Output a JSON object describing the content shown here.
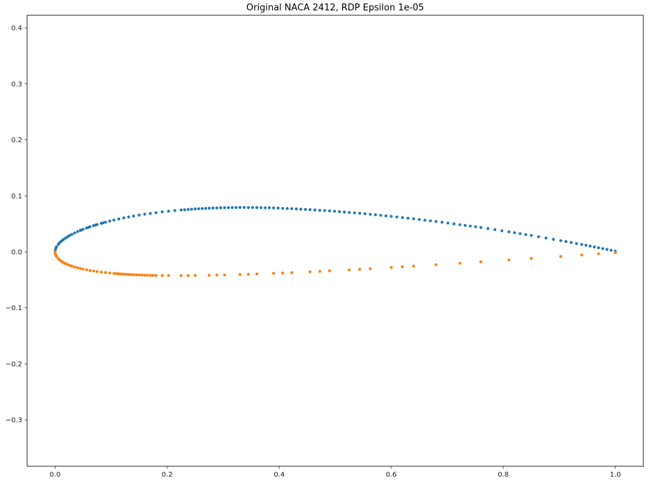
{
  "chart_data": {
    "type": "scatter",
    "title": "Original NACA 2412, RDP Epsilon 1e-05",
    "xlabel": "",
    "ylabel": "",
    "grid": false,
    "legend": "none",
    "aspect": "equal",
    "xlim": [
      -0.05,
      1.05
    ],
    "ylim": [
      -0.3828,
      0.4224
    ],
    "x_ticks": [
      0.0,
      0.2,
      0.4,
      0.6,
      0.8,
      1.0
    ],
    "x_tick_labels": [
      "0.0",
      "0.2",
      "0.4",
      "0.6",
      "0.8",
      "1.0"
    ],
    "y_ticks": [
      -0.3,
      -0.2,
      -0.1,
      0.0,
      0.1,
      0.2,
      0.3,
      0.4
    ],
    "y_tick_labels": [
      "−0.3",
      "−0.2",
      "−0.1",
      "0.0",
      "0.1",
      "0.2",
      "0.3",
      "0.4"
    ],
    "marker": {
      "shape": "circle",
      "radius_px": 2.1
    },
    "spine_color": "#262626",
    "series": [
      {
        "name": "upper_surface",
        "color": "#1f77b4",
        "points": [
          [
            0.0,
            0.0
          ],
          [
            0.0004,
            0.0036
          ],
          [
            0.0016,
            0.0072
          ],
          [
            0.0025,
            0.009
          ],
          [
            0.0056,
            0.0135
          ],
          [
            0.0075,
            0.0157
          ],
          [
            0.01,
            0.018
          ],
          [
            0.0125,
            0.0201
          ],
          [
            0.015,
            0.0221
          ],
          [
            0.0187,
            0.0246
          ],
          [
            0.0225,
            0.0271
          ],
          [
            0.0262,
            0.0292
          ],
          [
            0.03,
            0.0313
          ],
          [
            0.035,
            0.0337
          ],
          [
            0.04,
            0.0361
          ],
          [
            0.045,
            0.0382
          ],
          [
            0.0469,
            0.039
          ],
          [
            0.05,
            0.0402
          ],
          [
            0.0562,
            0.0425
          ],
          [
            0.0594,
            0.0437
          ],
          [
            0.0625,
            0.0448
          ],
          [
            0.0687,
            0.0468
          ],
          [
            0.0719,
            0.0478
          ],
          [
            0.075,
            0.0488
          ],
          [
            0.0825,
            0.0509
          ],
          [
            0.0856,
            0.0518
          ],
          [
            0.09,
            0.053
          ],
          [
            0.0975,
            0.0549
          ],
          [
            0.105,
            0.0568
          ],
          [
            0.1137,
            0.0587
          ],
          [
            0.1225,
            0.0606
          ],
          [
            0.1312,
            0.0623
          ],
          [
            0.14,
            0.0639
          ],
          [
            0.15,
            0.0656
          ],
          [
            0.16,
            0.0672
          ],
          [
            0.17,
            0.0686
          ],
          [
            0.18,
            0.07
          ],
          [
            0.1912,
            0.0713
          ],
          [
            0.2025,
            0.0726
          ],
          [
            0.2137,
            0.0737
          ],
          [
            0.225,
            0.0748
          ],
          [
            0.2312,
            0.0752
          ],
          [
            0.2375,
            0.0757
          ],
          [
            0.2437,
            0.0762
          ],
          [
            0.25,
            0.0766
          ],
          [
            0.2562,
            0.0769
          ],
          [
            0.2625,
            0.0773
          ],
          [
            0.2687,
            0.0776
          ],
          [
            0.275,
            0.0779
          ],
          [
            0.2819,
            0.0782
          ],
          [
            0.2887,
            0.0784
          ],
          [
            0.2956,
            0.0786
          ],
          [
            0.3025,
            0.0788
          ],
          [
            0.3094,
            0.0789
          ],
          [
            0.3162,
            0.079
          ],
          [
            0.3231,
            0.0791
          ],
          [
            0.33,
            0.0792
          ],
          [
            0.3375,
            0.0792
          ],
          [
            0.345,
            0.0791
          ],
          [
            0.3525,
            0.0791
          ],
          [
            0.36,
            0.0791
          ],
          [
            0.3675,
            0.0789
          ],
          [
            0.375,
            0.0787
          ],
          [
            0.3825,
            0.0786
          ],
          [
            0.39,
            0.0784
          ],
          [
            0.3981,
            0.0781
          ],
          [
            0.4062,
            0.0777
          ],
          [
            0.4144,
            0.0774
          ],
          [
            0.4225,
            0.0771
          ],
          [
            0.4305,
            0.0767
          ],
          [
            0.4387,
            0.0762
          ],
          [
            0.4469,
            0.0758
          ],
          [
            0.455,
            0.0754
          ],
          [
            0.4637,
            0.0748
          ],
          [
            0.4725,
            0.0742
          ],
          [
            0.4812,
            0.0737
          ],
          [
            0.49,
            0.0731
          ],
          [
            0.4987,
            0.0724
          ],
          [
            0.5075,
            0.0718
          ],
          [
            0.5162,
            0.0711
          ],
          [
            0.525,
            0.0704
          ],
          [
            0.5344,
            0.0696
          ],
          [
            0.5437,
            0.0688
          ],
          [
            0.5531,
            0.068
          ],
          [
            0.5625,
            0.0671
          ],
          [
            0.5719,
            0.0662
          ],
          [
            0.5812,
            0.0653
          ],
          [
            0.5906,
            0.0643
          ],
          [
            0.6,
            0.0634
          ],
          [
            0.61,
            0.0623
          ],
          [
            0.62,
            0.0612
          ],
          [
            0.63,
            0.0601
          ],
          [
            0.64,
            0.059
          ],
          [
            0.65,
            0.0578
          ],
          [
            0.66,
            0.0566
          ],
          [
            0.67,
            0.0554
          ],
          [
            0.68,
            0.0542
          ],
          [
            0.6906,
            0.0528
          ],
          [
            0.7012,
            0.0514
          ],
          [
            0.7119,
            0.05
          ],
          [
            0.7225,
            0.0486
          ],
          [
            0.7319,
            0.0473
          ],
          [
            0.7412,
            0.046
          ],
          [
            0.7506,
            0.0447
          ],
          [
            0.76,
            0.0434
          ],
          [
            0.7725,
            0.0415
          ],
          [
            0.785,
            0.0396
          ],
          [
            0.7975,
            0.0377
          ],
          [
            0.81,
            0.0358
          ],
          [
            0.82,
            0.0342
          ],
          [
            0.83,
            0.0325
          ],
          [
            0.84,
            0.0309
          ],
          [
            0.85,
            0.0293
          ],
          [
            0.8631,
            0.027
          ],
          [
            0.8762,
            0.0247
          ],
          [
            0.8894,
            0.0224
          ],
          [
            0.9025,
            0.0201
          ],
          [
            0.9119,
            0.0184
          ],
          [
            0.9212,
            0.0167
          ],
          [
            0.9306,
            0.0149
          ],
          [
            0.94,
            0.0132
          ],
          [
            0.9475,
            0.0117
          ],
          [
            0.955,
            0.0103
          ],
          [
            0.9625,
            0.0088
          ],
          [
            0.97,
            0.0073
          ],
          [
            0.9775,
            0.0058
          ],
          [
            0.985,
            0.0043
          ],
          [
            0.9925,
            0.0028
          ],
          [
            1.0,
            0.0013
          ]
        ]
      },
      {
        "name": "lower_surface",
        "color": "#ff7f0e",
        "points": [
          [
            0.0,
            0.0
          ],
          [
            0.0004,
            -0.0035
          ],
          [
            0.0016,
            -0.0068
          ],
          [
            0.0025,
            -0.0085
          ],
          [
            0.0056,
            -0.0123
          ],
          [
            0.0075,
            -0.0142
          ],
          [
            0.01,
            -0.016
          ],
          [
            0.0125,
            -0.0177
          ],
          [
            0.015,
            -0.0192
          ],
          [
            0.0187,
            -0.0211
          ],
          [
            0.0225,
            -0.0227
          ],
          [
            0.0262,
            -0.0241
          ],
          [
            0.03,
            -0.0255
          ],
          [
            0.035,
            -0.027
          ],
          [
            0.04,
            -0.0285
          ],
          [
            0.045,
            -0.0297
          ],
          [
            0.05,
            -0.0309
          ],
          [
            0.0562,
            -0.0321
          ],
          [
            0.0625,
            -0.0333
          ],
          [
            0.0687,
            -0.0343
          ],
          [
            0.075,
            -0.0352
          ],
          [
            0.0825,
            -0.0362
          ],
          [
            0.09,
            -0.0371
          ],
          [
            0.0975,
            -0.0378
          ],
          [
            0.105,
            -0.0385
          ],
          [
            0.1094,
            -0.0389
          ],
          [
            0.1137,
            -0.0392
          ],
          [
            0.1181,
            -0.0395
          ],
          [
            0.1225,
            -0.0398
          ],
          [
            0.1269,
            -0.0401
          ],
          [
            0.1312,
            -0.0403
          ],
          [
            0.1356,
            -0.0406
          ],
          [
            0.14,
            -0.0408
          ],
          [
            0.145,
            -0.041
          ],
          [
            0.15,
            -0.0412
          ],
          [
            0.155,
            -0.0414
          ],
          [
            0.16,
            -0.0416
          ],
          [
            0.165,
            -0.0418
          ],
          [
            0.17,
            -0.0419
          ],
          [
            0.175,
            -0.042
          ],
          [
            0.18,
            -0.0421
          ],
          [
            0.1912,
            -0.0423
          ],
          [
            0.2025,
            -0.0424
          ],
          [
            0.225,
            -0.0424
          ],
          [
            0.2375,
            -0.0423
          ],
          [
            0.25,
            -0.0422
          ],
          [
            0.275,
            -0.0418
          ],
          [
            0.2887,
            -0.0415
          ],
          [
            0.3025,
            -0.0412
          ],
          [
            0.33,
            -0.0404
          ],
          [
            0.345,
            -0.04
          ],
          [
            0.36,
            -0.0395
          ],
          [
            0.39,
            -0.0384
          ],
          [
            0.4062,
            -0.0378
          ],
          [
            0.4225,
            -0.0371
          ],
          [
            0.455,
            -0.0357
          ],
          [
            0.4725,
            -0.0349
          ],
          [
            0.49,
            -0.034
          ],
          [
            0.525,
            -0.0322
          ],
          [
            0.5437,
            -0.0311
          ],
          [
            0.5625,
            -0.0301
          ],
          [
            0.6,
            -0.0279
          ],
          [
            0.62,
            -0.0266
          ],
          [
            0.64,
            -0.0254
          ],
          [
            0.68,
            -0.0229
          ],
          [
            0.7225,
            -0.0202
          ],
          [
            0.76,
            -0.0178
          ],
          [
            0.81,
            -0.0145
          ],
          [
            0.85,
            -0.0118
          ],
          [
            0.9025,
            -0.0082
          ],
          [
            0.94,
            -0.0056
          ],
          [
            0.97,
            -0.0034
          ],
          [
            1.0,
            -0.0013
          ]
        ]
      }
    ]
  }
}
